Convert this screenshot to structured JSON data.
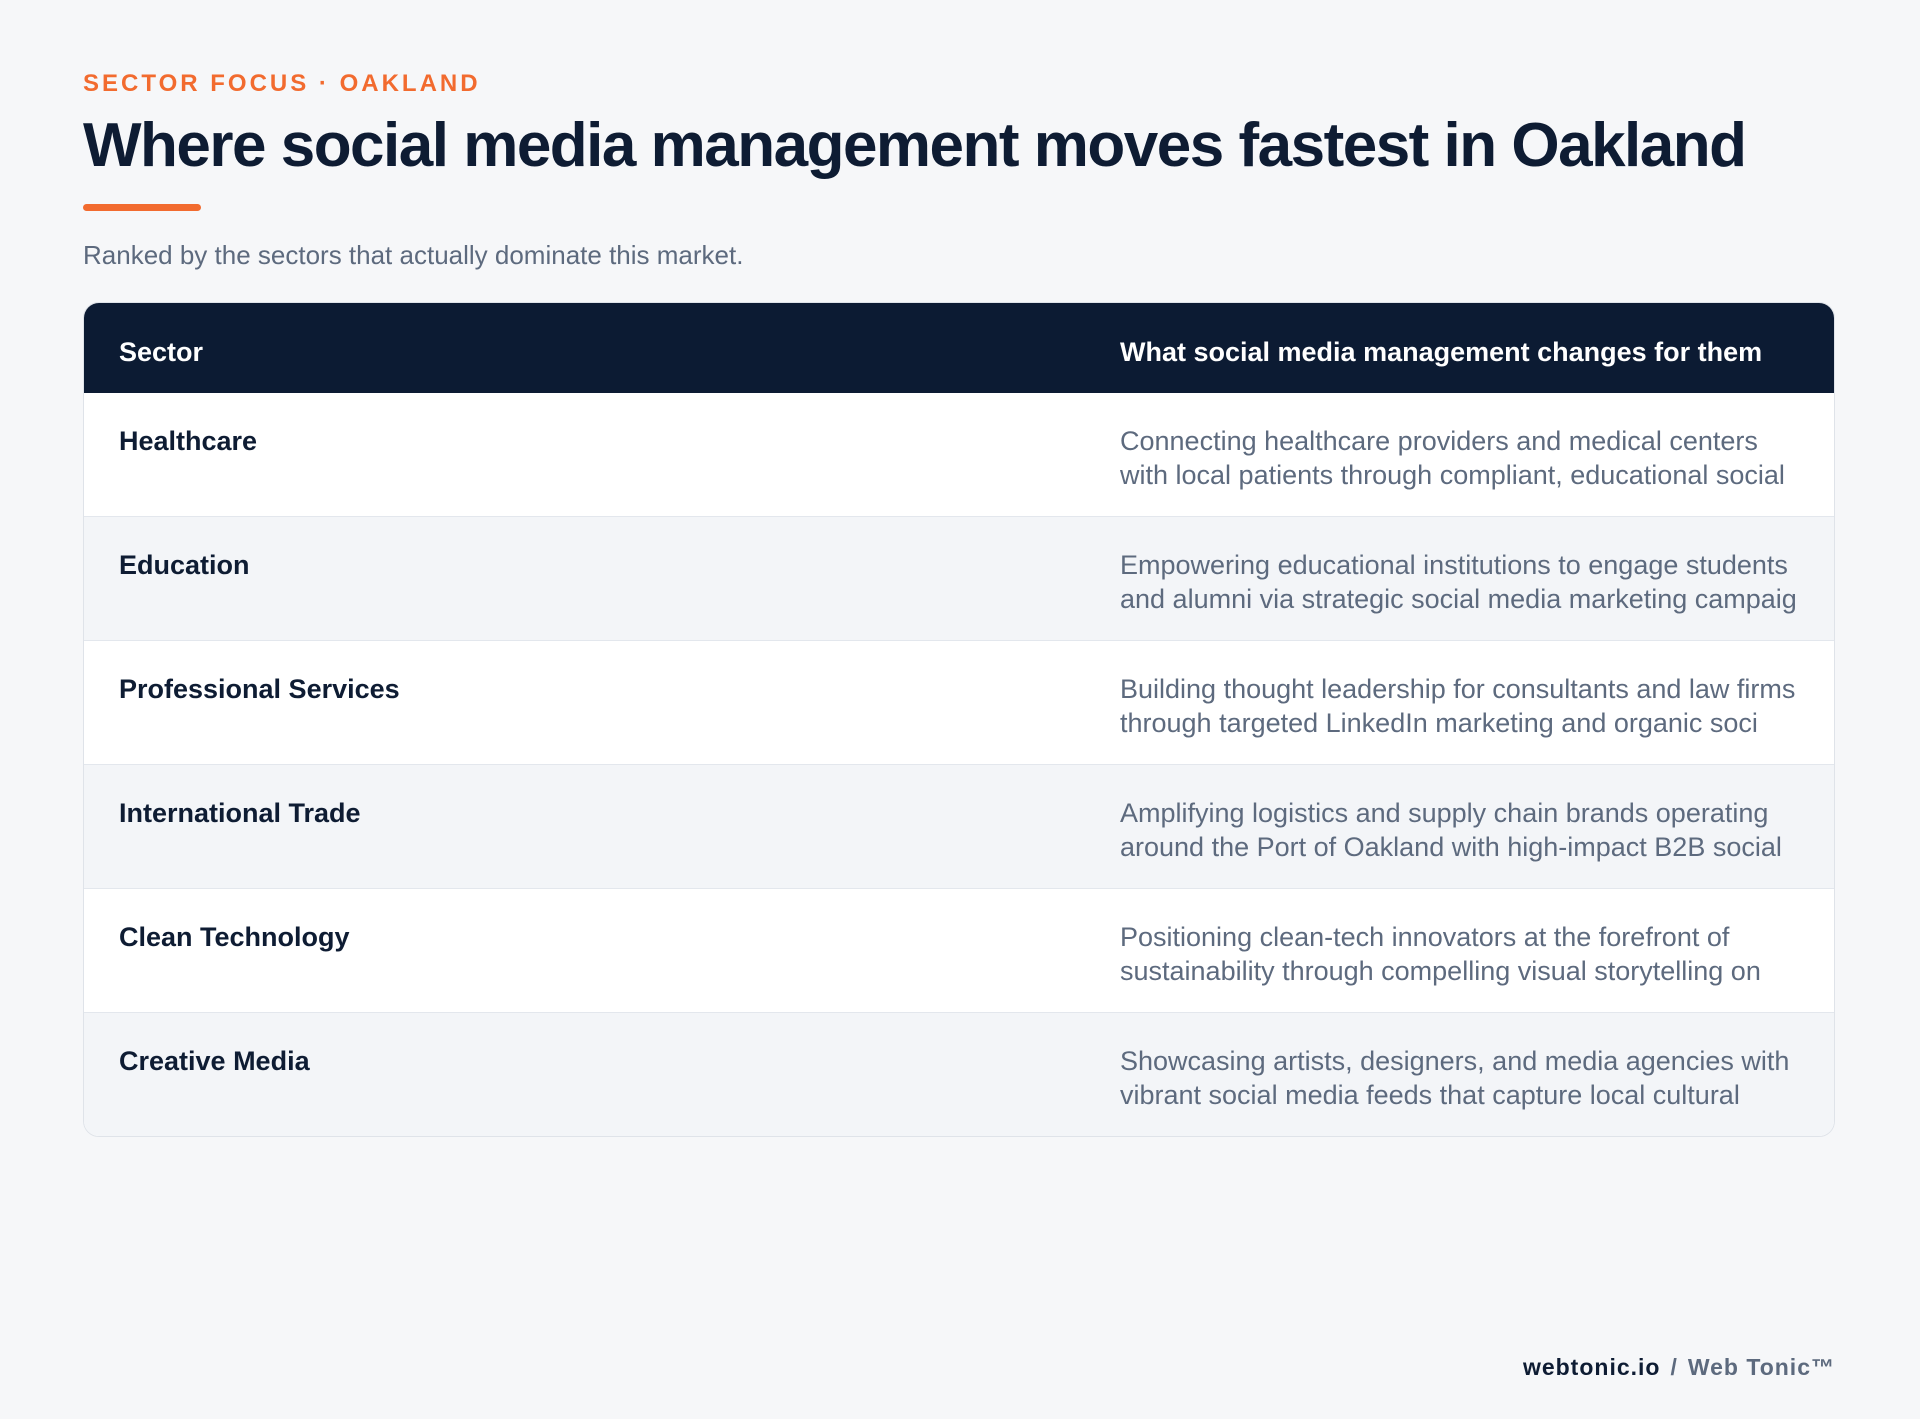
{
  "header": {
    "eyebrow": "SECTOR FOCUS · OAKLAND",
    "title": "Where social media management moves fastest in Oakland",
    "subtitle": "Ranked by the sectors that actually dominate this market."
  },
  "table": {
    "columns": [
      "Sector",
      "What social media management changes for them"
    ],
    "rows": [
      {
        "sector": "Healthcare",
        "description": "Connecting healthcare providers and medical centers with local patients through compliant, educational social"
      },
      {
        "sector": "Education",
        "description": "Empowering educational institutions to engage students and alumni via strategic social media marketing campaig"
      },
      {
        "sector": "Professional Services",
        "description": "Building thought leadership for consultants and law firms through targeted LinkedIn marketing and organic soci"
      },
      {
        "sector": "International Trade",
        "description": "Amplifying logistics and supply chain brands operating around the Port of Oakland with high-impact B2B social"
      },
      {
        "sector": "Clean Technology",
        "description": "Positioning clean-tech innovators at the forefront of sustainability through compelling visual storytelling on"
      },
      {
        "sector": "Creative Media",
        "description": "Showcasing artists, designers, and media agencies with vibrant social media feeds that capture local cultural"
      }
    ]
  },
  "footer": {
    "domain": "webtonic.io",
    "separator": "/",
    "brand": "Web Tonic™"
  },
  "colors": {
    "accent": "#f26b2f",
    "navy": "#0c1b33",
    "muted_text": "#5d6a7e",
    "background": "#f6f7f9"
  }
}
